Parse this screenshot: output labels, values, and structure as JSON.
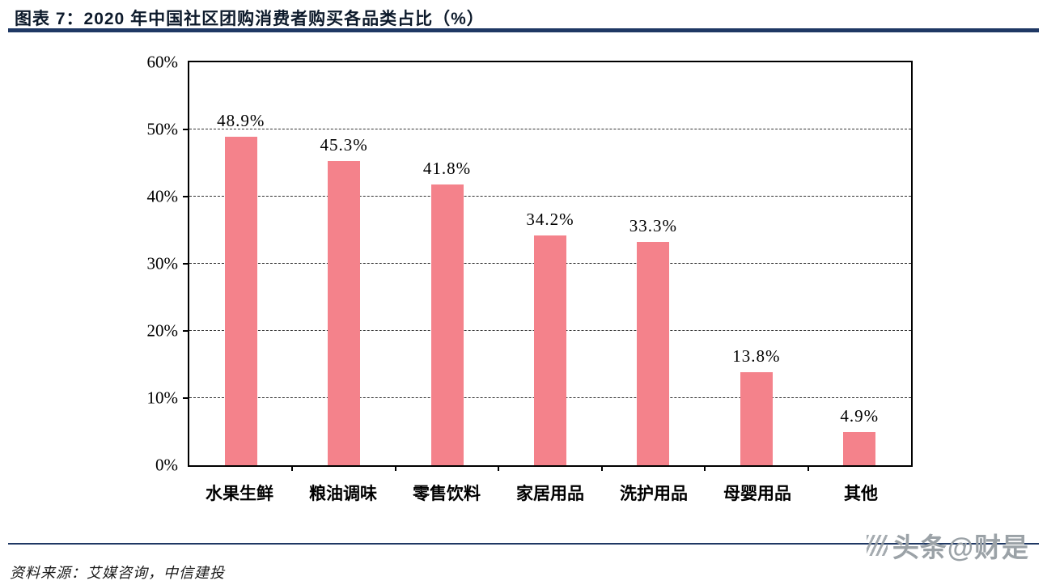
{
  "page": {
    "title": "图表 7：2020 年中国社区团购消费者购买各品类占比（%）",
    "source_note": "资料来源：艾媒咨询，中信建投",
    "watermark": "头条@财是"
  },
  "colors": {
    "accent_navy": "#1F3864",
    "bar_fill": "#F4828B",
    "watermark_gray": "#9BA2A7"
  },
  "chart_data": {
    "type": "bar",
    "title": "2020 年中国社区团购消费者购买各品类占比（%）",
    "categories": [
      "水果生鲜",
      "粮油调味",
      "零售饮料",
      "家居用品",
      "洗护用品",
      "母婴用品",
      "其他"
    ],
    "values": [
      48.9,
      45.3,
      41.8,
      34.2,
      33.3,
      13.8,
      4.9
    ],
    "value_labels": [
      "48.9%",
      "45.3%",
      "41.8%",
      "34.2%",
      "33.3%",
      "13.8%",
      "4.9%"
    ],
    "xlabel": "",
    "ylabel": "",
    "ylim": [
      0,
      60
    ],
    "y_ticks": [
      "0%",
      "10%",
      "20%",
      "30%",
      "40%",
      "50%",
      "60%"
    ],
    "grid": "dashed-horizontal",
    "legend": "none"
  }
}
